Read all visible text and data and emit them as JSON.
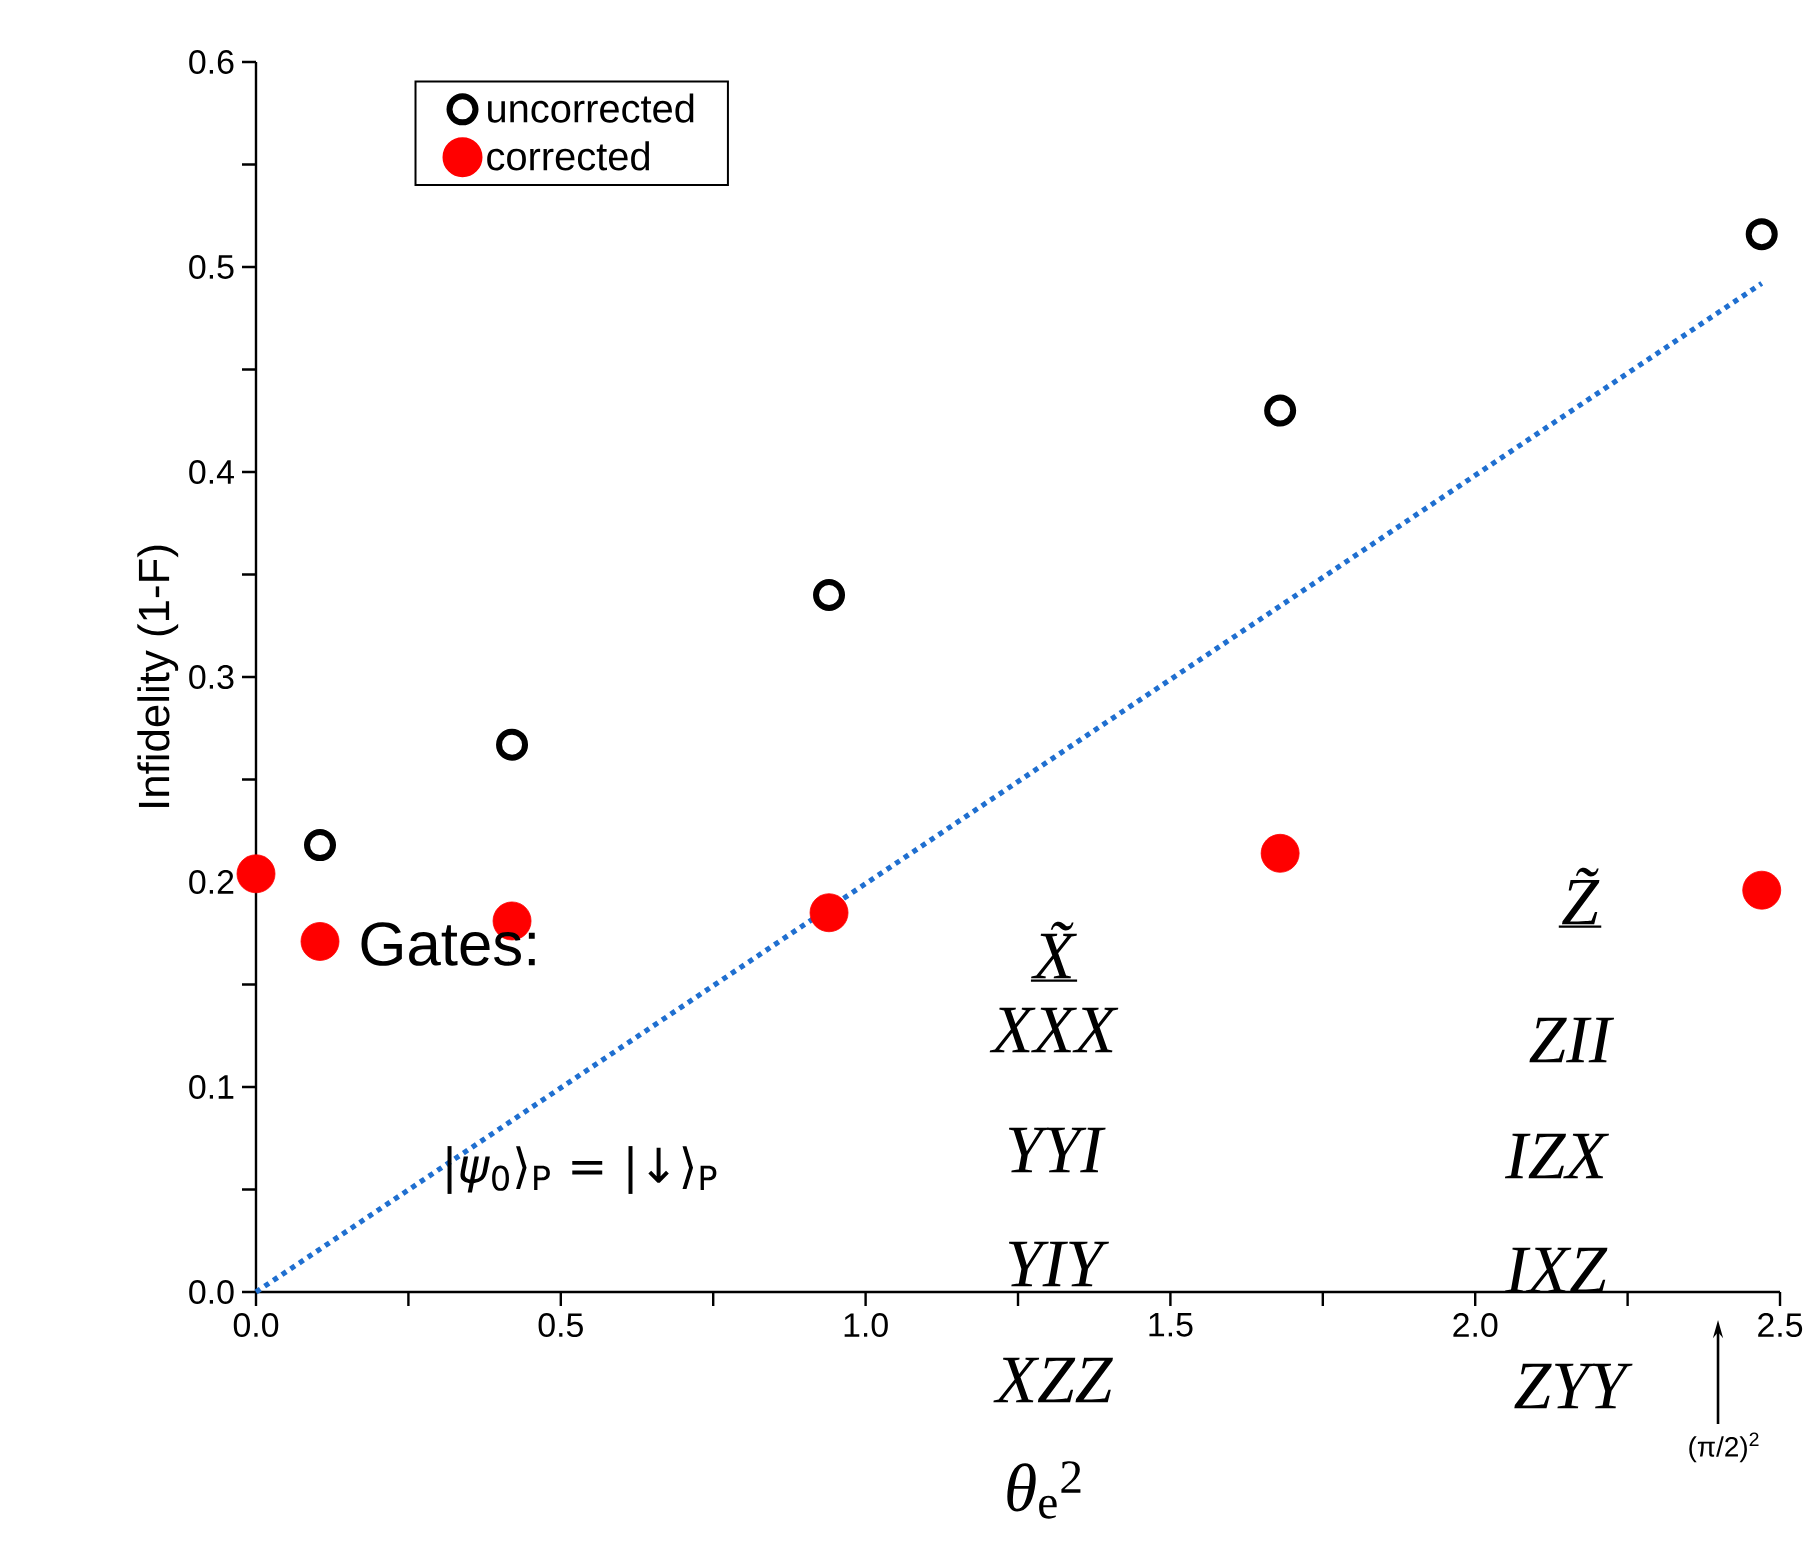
{
  "chart_data": {
    "type": "scatter",
    "xlabel": "*θ*$_{e}$$^{2}$",
    "ylabel": "Infidelity (1-F)",
    "xlim": [
      0,
      2.5
    ],
    "ylim": [
      0,
      0.6
    ],
    "xticks": [
      {
        "value": 0,
        "label": "0.0"
      },
      {
        "value": 0.25,
        "label": null
      },
      {
        "value": 0.5,
        "label": "0.5"
      },
      {
        "value": 0.75,
        "label": null
      },
      {
        "value": 1.0,
        "label": "1.0"
      },
      {
        "value": 1.25,
        "label": null
      },
      {
        "value": 1.5,
        "label": "1.5"
      },
      {
        "value": 1.75,
        "label": null
      },
      {
        "value": 2.0,
        "label": "2.0"
      },
      {
        "value": 2.25,
        "label": null
      },
      {
        "value": 2.5,
        "label": "2.5"
      }
    ],
    "yticks": [
      {
        "value": 0,
        "label": "0.0"
      },
      {
        "value": 0.05,
        "label": null
      },
      {
        "value": 0.1,
        "label": "0.1"
      },
      {
        "value": 0.15,
        "label": null
      },
      {
        "value": 0.2,
        "label": "0.2"
      },
      {
        "value": 0.25,
        "label": null
      },
      {
        "value": 0.3,
        "label": "0.3"
      },
      {
        "value": 0.35,
        "label": null
      },
      {
        "value": 0.4,
        "label": "0.4"
      },
      {
        "value": 0.45,
        "label": null
      },
      {
        "value": 0.5,
        "label": "0.5"
      },
      {
        "value": 0.55,
        "label": null
      },
      {
        "value": 0.6,
        "label": "0.6"
      }
    ],
    "legend": "top left",
    "series": [
      {
        "name": "uncorrected",
        "color": "#000000",
        "marker": "circle",
        "x": [
          0.105,
          0.42,
          0.94,
          1.68,
          2.47
        ],
        "values": [
          0.218,
          0.267,
          0.34,
          0.43,
          0.516
        ]
      },
      {
        "name": "corrected",
        "color": "#ff0000",
        "marker": "circle",
        "x": [
          0,
          0.105,
          0.42,
          0.94,
          1.68,
          2.47
        ],
        "values": [
          0.204,
          0.171,
          0.181,
          0.185,
          0.214,
          0.196
        ]
      },
      {
        "type": "line",
        "color": "#1f6fd0",
        "line_style": "dotted",
        "marker": "none",
        "x": [
          0,
          2.47
        ],
        "values": [
          0,
          0.492
        ]
      }
    ],
    "annotations": [
      "Gates:",
      "X̃",
      "XXX",
      "YYI",
      "YIY",
      "XZZ",
      "Z̃",
      "ZII",
      "IZX",
      "IXZ",
      "ZYY",
      "|*ψ*$_{0}$⟩$_{P}$ = |↓⟩$_{P}$",
      "(π/2)$^{2}$"
    ]
  }
}
